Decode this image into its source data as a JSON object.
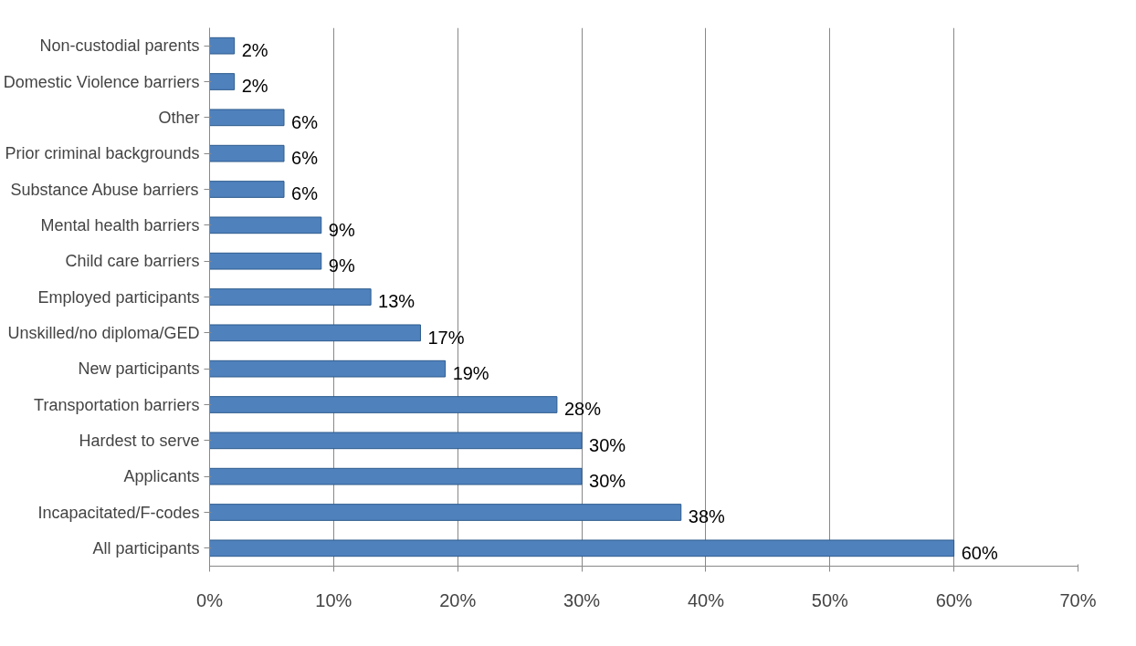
{
  "chart_data": {
    "type": "bar",
    "orientation": "horizontal",
    "categories": [
      "Non-custodial parents",
      "Domestic Violence barriers",
      "Other",
      "Prior criminal backgrounds",
      "Substance Abuse barriers",
      "Mental health barriers",
      "Child care barriers",
      "Employed participants",
      "Unskilled/no diploma/GED",
      "New participants",
      "Transportation barriers",
      "Hardest to serve",
      "Applicants",
      "Incapacitated/F-codes",
      "All participants"
    ],
    "values": [
      2,
      2,
      6,
      6,
      6,
      9,
      9,
      13,
      17,
      19,
      28,
      30,
      30,
      38,
      60
    ],
    "value_labels": [
      "2%",
      "2%",
      "6%",
      "6%",
      "6%",
      "9%",
      "9%",
      "13%",
      "17%",
      "19%",
      "28%",
      "30%",
      "30%",
      "38%",
      "60%"
    ],
    "color": "#4f81bd",
    "xlim": [
      0,
      70
    ],
    "xticks": [
      {
        "value": 0,
        "label": "0%"
      },
      {
        "value": 10,
        "label": "10%"
      },
      {
        "value": 20,
        "label": "20%"
      },
      {
        "value": 30,
        "label": "30%"
      },
      {
        "value": 40,
        "label": "40%"
      },
      {
        "value": 50,
        "label": "50%"
      },
      {
        "value": 60,
        "label": "60%"
      },
      {
        "value": 70,
        "label": "70%"
      }
    ],
    "grid": "x"
  }
}
